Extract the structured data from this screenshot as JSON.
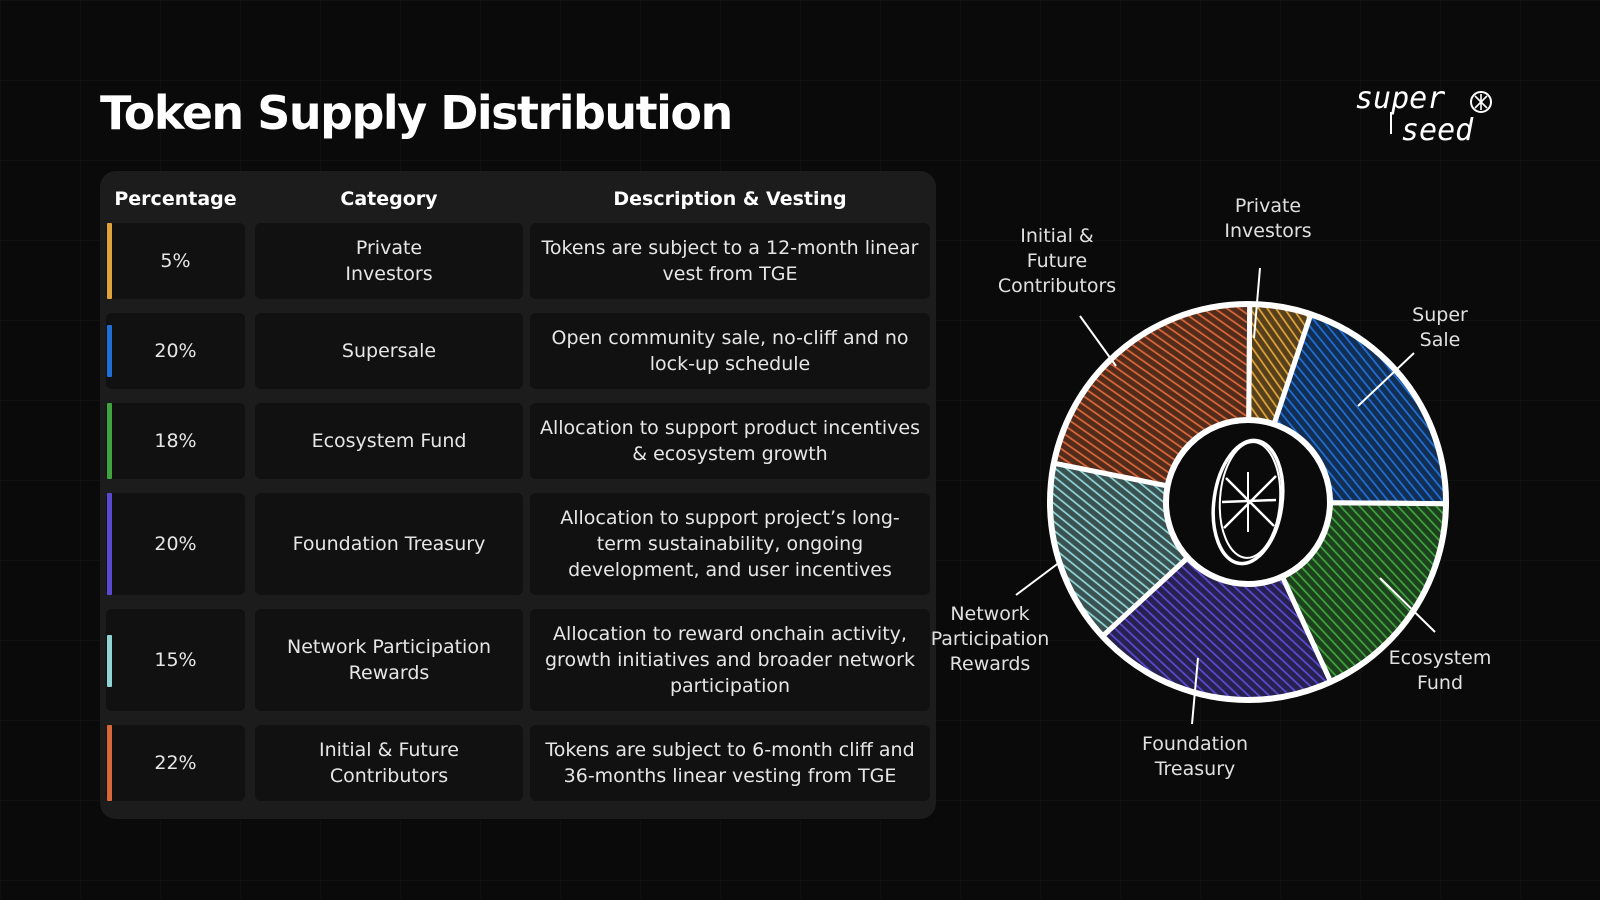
{
  "header": {
    "title": "Token Supply Distribution",
    "logo_text": "super seed"
  },
  "table": {
    "columns": [
      "Percentage",
      "Category",
      "Description & Vesting"
    ],
    "rows": [
      {
        "percentage": "5%",
        "category": "Private\nInvestors",
        "description": "Tokens are subject to a 12-month linear vest from TGE",
        "color": "#e0a23a"
      },
      {
        "percentage": "20%",
        "category": "Supersale",
        "description": "Open community sale, no-cliff and no lock-up schedule",
        "color": "#1f6fd6"
      },
      {
        "percentage": "18%",
        "category": "Ecosystem Fund",
        "description": "Allocation to support product incentives & ecosystem growth",
        "color": "#3fa33f"
      },
      {
        "percentage": "20%",
        "category": "Foundation Treasury",
        "description": "Allocation to support project’s long-term sustainability, ongoing development, and user incentives",
        "color": "#5a4ad1"
      },
      {
        "percentage": "15%",
        "category": "Network Participation Rewards",
        "description": "Allocation to reward onchain activity, growth initiatives and broader network participation",
        "color": "#8fd3d4"
      },
      {
        "percentage": "22%",
        "category": "Initial & Future Contributors",
        "description": "Tokens are subject to 6-month cliff and 36-months linear vesting from TGE",
        "color": "#d9673a"
      }
    ]
  },
  "chart_data": {
    "type": "pie",
    "donut": true,
    "categories": [
      "Private Investors",
      "Super Sale",
      "Ecosystem Fund",
      "Foundation Treasury",
      "Network Participation Rewards",
      "Initial & Future Contributors"
    ],
    "values": [
      5,
      20,
      18,
      20,
      15,
      22
    ],
    "colors": [
      "#e0a23a",
      "#1f6fd6",
      "#3fa33f",
      "#5a4ad1",
      "#8fd3d4",
      "#d9673a"
    ],
    "labels": [
      {
        "text": "Private\nInvestors"
      },
      {
        "text": "Super\nSale"
      },
      {
        "text": "Ecosystem\nFund"
      },
      {
        "text": "Foundation\nTreasury"
      },
      {
        "text": "Network\nParticipation\nRewards"
      },
      {
        "text": "Initial &\nFuture\nContributors"
      }
    ]
  }
}
